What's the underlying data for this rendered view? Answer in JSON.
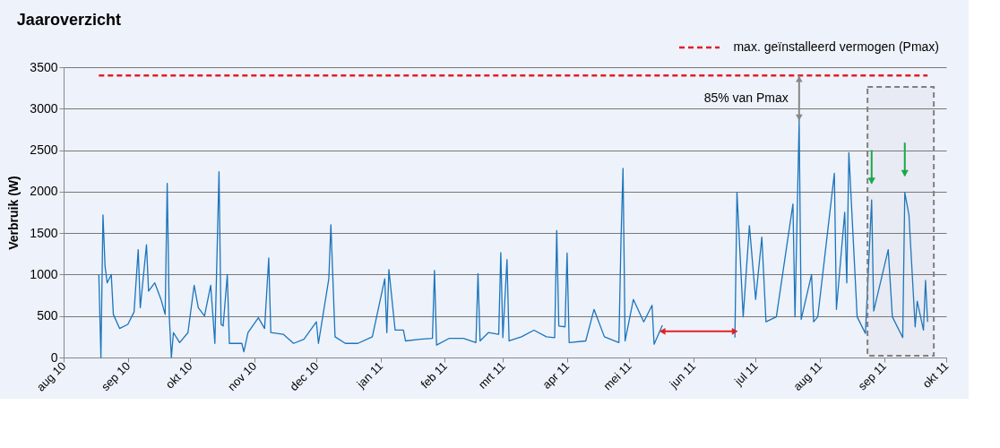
{
  "chart_data": {
    "type": "line",
    "title": "Jaaroverzicht",
    "ylabel": "Verbruik (W)",
    "x": [
      "2010-08-18",
      "2010-08-19",
      "2010-08-20",
      "2010-08-21",
      "2010-08-22",
      "2010-08-24",
      "2010-08-25",
      "2010-08-28",
      "2010-09-01",
      "2010-09-04",
      "2010-09-06",
      "2010-09-07",
      "2010-09-10",
      "2010-09-11",
      "2010-09-14",
      "2010-09-17",
      "2010-09-19",
      "2010-09-20",
      "2010-09-21",
      "2010-09-22",
      "2010-09-23",
      "2010-09-26",
      "2010-09-30",
      "2010-10-03",
      "2010-10-05",
      "2010-10-08",
      "2010-10-11",
      "2010-10-13",
      "2010-10-15",
      "2010-10-16",
      "2010-10-17",
      "2010-10-19",
      "2010-10-20",
      "2010-10-26",
      "2010-10-27",
      "2010-10-29",
      "2010-11-03",
      "2010-11-06",
      "2010-11-08",
      "2010-11-09",
      "2010-11-15",
      "2010-11-20",
      "2010-11-25",
      "2010-12-01",
      "2010-12-02",
      "2010-12-07",
      "2010-12-08",
      "2010-12-10",
      "2010-12-15",
      "2010-12-21",
      "2010-12-28",
      "2011-01-03",
      "2011-01-04",
      "2011-01-05",
      "2011-01-08",
      "2011-01-12",
      "2011-01-13",
      "2011-01-20",
      "2011-01-26",
      "2011-01-27",
      "2011-01-28",
      "2011-02-03",
      "2011-02-10",
      "2011-02-16",
      "2011-02-17",
      "2011-02-18",
      "2011-02-22",
      "2011-02-27",
      "2011-02-28",
      "2011-03-01",
      "2011-03-03",
      "2011-03-04",
      "2011-03-10",
      "2011-03-16",
      "2011-03-22",
      "2011-03-26",
      "2011-03-27",
      "2011-03-28",
      "2011-03-31",
      "2011-04-01",
      "2011-04-02",
      "2011-04-10",
      "2011-04-14",
      "2011-04-19",
      "2011-04-26",
      "2011-04-27",
      "2011-04-28",
      "2011-04-29",
      "2011-05-03",
      "2011-05-08",
      "2011-05-12",
      "2011-05-13",
      "2011-05-17",
      "2011-05-18",
      "2011-06-21",
      "2011-06-22",
      "2011-06-25",
      "2011-06-28",
      "2011-07-01",
      "2011-07-04",
      "2011-07-06",
      "2011-07-11",
      "2011-07-19",
      "2011-07-20",
      "2011-07-22",
      "2011-07-23",
      "2011-07-28",
      "2011-07-29",
      "2011-07-31",
      "2011-08-08",
      "2011-08-09",
      "2011-08-13",
      "2011-08-14",
      "2011-08-15",
      "2011-08-19",
      "2011-08-23",
      "2011-08-26",
      "2011-08-27",
      "2011-09-03",
      "2011-09-05",
      "2011-09-10",
      "2011-09-11",
      "2011-09-13",
      "2011-09-16",
      "2011-09-17",
      "2011-09-20",
      "2011-09-21",
      "2011-09-22"
    ],
    "series": [
      {
        "color": "#1b75bc",
        "values": [
          1000,
          0,
          1720,
          1100,
          900,
          1000,
          520,
          350,
          400,
          550,
          1300,
          600,
          1360,
          800,
          900,
          700,
          520,
          2100,
          500,
          0,
          300,
          180,
          300,
          870,
          600,
          500,
          870,
          170,
          2240,
          400,
          380,
          1000,
          170,
          170,
          70,
          300,
          480,
          350,
          1200,
          300,
          280,
          170,
          220,
          430,
          170,
          950,
          1600,
          250,
          170,
          170,
          250,
          950,
          300,
          1060,
          330,
          330,
          200,
          220,
          230,
          1050,
          150,
          230,
          230,
          180,
          1010,
          200,
          300,
          280,
          1265,
          240,
          1180,
          200,
          250,
          330,
          250,
          240,
          1530,
          380,
          370,
          1260,
          180,
          200,
          580,
          250,
          180,
          1400,
          2280,
          200,
          700,
          430,
          630,
          160,
          390,
          null,
          240,
          1990,
          490,
          1590,
          700,
          1450,
          430,
          490,
          1850,
          490,
          2850,
          460,
          1000,
          430,
          490,
          2220,
          580,
          1750,
          900,
          2470,
          490,
          290,
          1900,
          560,
          1300,
          490,
          240,
          1990,
          1720,
          370,
          680,
          330,
          930,
          430
        ]
      }
    ],
    "xlim": [
      "2010-08-01",
      "2011-10-01"
    ],
    "xticks": [
      {
        "value": "2010-08-01",
        "label": "aug 10"
      },
      {
        "value": "2010-09-01",
        "label": "sep 10"
      },
      {
        "value": "2010-10-01",
        "label": "okt 10"
      },
      {
        "value": "2010-11-01",
        "label": "nov 10"
      },
      {
        "value": "2010-12-01",
        "label": "dec 10"
      },
      {
        "value": "2011-01-01",
        "label": "jan 11"
      },
      {
        "value": "2011-02-01",
        "label": "feb 11"
      },
      {
        "value": "2011-03-01",
        "label": "mrt 11"
      },
      {
        "value": "2011-04-01",
        "label": "apr 11"
      },
      {
        "value": "2011-05-01",
        "label": "mei 11"
      },
      {
        "value": "2011-06-01",
        "label": "jun 11"
      },
      {
        "value": "2011-07-01",
        "label": "jul 11"
      },
      {
        "value": "2011-08-01",
        "label": "aug 11"
      },
      {
        "value": "2011-09-01",
        "label": "sep 11"
      },
      {
        "value": "2011-10-01",
        "label": "okt 11"
      }
    ],
    "ylim": [
      0,
      3500
    ],
    "yticks": [
      0,
      500,
      1000,
      1500,
      2000,
      2500,
      3000,
      3500
    ],
    "grid": "y",
    "legend": "top right",
    "line_style": "solid",
    "ref_lines": [
      {
        "axis": "y",
        "value": 3400,
        "label": "max. geïnstalleerd vermogen (Pmax)",
        "color": "#e0202a",
        "line_style": "dashed"
      }
    ],
    "bands": [
      {
        "axis": "x",
        "from": "2011-08-24",
        "to": "2011-09-25",
        "label": null,
        "color": "#808080"
      }
    ],
    "annotations": [
      {
        "text": "85% van Pmax",
        "x": "2011-07-22",
        "y": 2850
      }
    ]
  }
}
